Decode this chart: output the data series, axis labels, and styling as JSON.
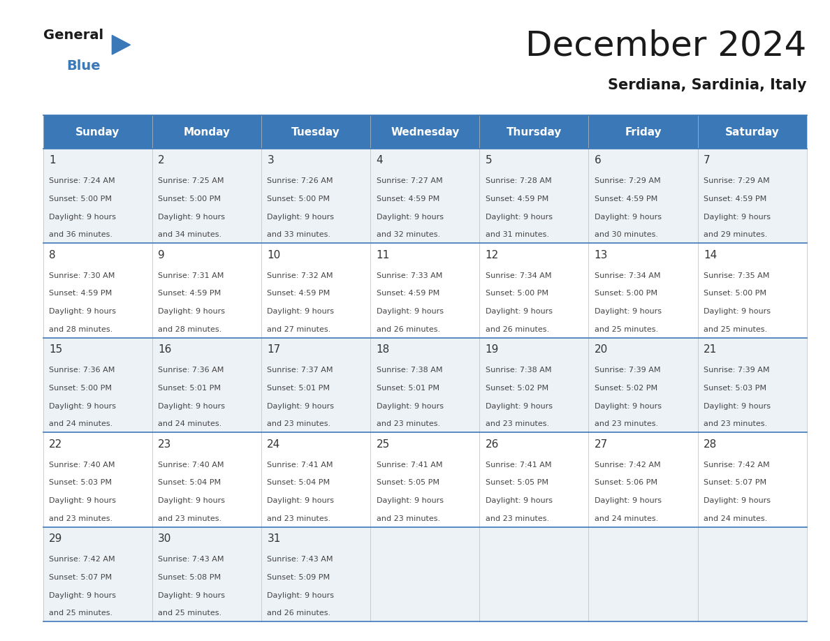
{
  "title": "December 2024",
  "subtitle": "Serdiana, Sardinia, Italy",
  "header_bg_color": "#3b78b8",
  "header_text_color": "#ffffff",
  "cell_bg_light": "#edf2f7",
  "cell_bg_white": "#ffffff",
  "grid_line_color": "#3b78b8",
  "text_color": "#444444",
  "day_num_color": "#333333",
  "days_of_week": [
    "Sunday",
    "Monday",
    "Tuesday",
    "Wednesday",
    "Thursday",
    "Friday",
    "Saturday"
  ],
  "calendar_data": [
    [
      {
        "day": 1,
        "sunrise": "7:24 AM",
        "sunset": "5:00 PM",
        "daylight_hours": 9,
        "daylight_minutes": 36
      },
      {
        "day": 2,
        "sunrise": "7:25 AM",
        "sunset": "5:00 PM",
        "daylight_hours": 9,
        "daylight_minutes": 34
      },
      {
        "day": 3,
        "sunrise": "7:26 AM",
        "sunset": "5:00 PM",
        "daylight_hours": 9,
        "daylight_minutes": 33
      },
      {
        "day": 4,
        "sunrise": "7:27 AM",
        "sunset": "4:59 PM",
        "daylight_hours": 9,
        "daylight_minutes": 32
      },
      {
        "day": 5,
        "sunrise": "7:28 AM",
        "sunset": "4:59 PM",
        "daylight_hours": 9,
        "daylight_minutes": 31
      },
      {
        "day": 6,
        "sunrise": "7:29 AM",
        "sunset": "4:59 PM",
        "daylight_hours": 9,
        "daylight_minutes": 30
      },
      {
        "day": 7,
        "sunrise": "7:29 AM",
        "sunset": "4:59 PM",
        "daylight_hours": 9,
        "daylight_minutes": 29
      }
    ],
    [
      {
        "day": 8,
        "sunrise": "7:30 AM",
        "sunset": "4:59 PM",
        "daylight_hours": 9,
        "daylight_minutes": 28
      },
      {
        "day": 9,
        "sunrise": "7:31 AM",
        "sunset": "4:59 PM",
        "daylight_hours": 9,
        "daylight_minutes": 28
      },
      {
        "day": 10,
        "sunrise": "7:32 AM",
        "sunset": "4:59 PM",
        "daylight_hours": 9,
        "daylight_minutes": 27
      },
      {
        "day": 11,
        "sunrise": "7:33 AM",
        "sunset": "4:59 PM",
        "daylight_hours": 9,
        "daylight_minutes": 26
      },
      {
        "day": 12,
        "sunrise": "7:34 AM",
        "sunset": "5:00 PM",
        "daylight_hours": 9,
        "daylight_minutes": 26
      },
      {
        "day": 13,
        "sunrise": "7:34 AM",
        "sunset": "5:00 PM",
        "daylight_hours": 9,
        "daylight_minutes": 25
      },
      {
        "day": 14,
        "sunrise": "7:35 AM",
        "sunset": "5:00 PM",
        "daylight_hours": 9,
        "daylight_minutes": 25
      }
    ],
    [
      {
        "day": 15,
        "sunrise": "7:36 AM",
        "sunset": "5:00 PM",
        "daylight_hours": 9,
        "daylight_minutes": 24
      },
      {
        "day": 16,
        "sunrise": "7:36 AM",
        "sunset": "5:01 PM",
        "daylight_hours": 9,
        "daylight_minutes": 24
      },
      {
        "day": 17,
        "sunrise": "7:37 AM",
        "sunset": "5:01 PM",
        "daylight_hours": 9,
        "daylight_minutes": 23
      },
      {
        "day": 18,
        "sunrise": "7:38 AM",
        "sunset": "5:01 PM",
        "daylight_hours": 9,
        "daylight_minutes": 23
      },
      {
        "day": 19,
        "sunrise": "7:38 AM",
        "sunset": "5:02 PM",
        "daylight_hours": 9,
        "daylight_minutes": 23
      },
      {
        "day": 20,
        "sunrise": "7:39 AM",
        "sunset": "5:02 PM",
        "daylight_hours": 9,
        "daylight_minutes": 23
      },
      {
        "day": 21,
        "sunrise": "7:39 AM",
        "sunset": "5:03 PM",
        "daylight_hours": 9,
        "daylight_minutes": 23
      }
    ],
    [
      {
        "day": 22,
        "sunrise": "7:40 AM",
        "sunset": "5:03 PM",
        "daylight_hours": 9,
        "daylight_minutes": 23
      },
      {
        "day": 23,
        "sunrise": "7:40 AM",
        "sunset": "5:04 PM",
        "daylight_hours": 9,
        "daylight_minutes": 23
      },
      {
        "day": 24,
        "sunrise": "7:41 AM",
        "sunset": "5:04 PM",
        "daylight_hours": 9,
        "daylight_minutes": 23
      },
      {
        "day": 25,
        "sunrise": "7:41 AM",
        "sunset": "5:05 PM",
        "daylight_hours": 9,
        "daylight_minutes": 23
      },
      {
        "day": 26,
        "sunrise": "7:41 AM",
        "sunset": "5:05 PM",
        "daylight_hours": 9,
        "daylight_minutes": 23
      },
      {
        "day": 27,
        "sunrise": "7:42 AM",
        "sunset": "5:06 PM",
        "daylight_hours": 9,
        "daylight_minutes": 24
      },
      {
        "day": 28,
        "sunrise": "7:42 AM",
        "sunset": "5:07 PM",
        "daylight_hours": 9,
        "daylight_minutes": 24
      }
    ],
    [
      {
        "day": 29,
        "sunrise": "7:42 AM",
        "sunset": "5:07 PM",
        "daylight_hours": 9,
        "daylight_minutes": 25
      },
      {
        "day": 30,
        "sunrise": "7:43 AM",
        "sunset": "5:08 PM",
        "daylight_hours": 9,
        "daylight_minutes": 25
      },
      {
        "day": 31,
        "sunrise": "7:43 AM",
        "sunset": "5:09 PM",
        "daylight_hours": 9,
        "daylight_minutes": 26
      },
      null,
      null,
      null,
      null
    ]
  ],
  "background_color": "#ffffff",
  "title_fontsize": 36,
  "subtitle_fontsize": 15,
  "header_fontsize": 11,
  "day_num_fontsize": 11,
  "cell_text_fontsize": 8
}
